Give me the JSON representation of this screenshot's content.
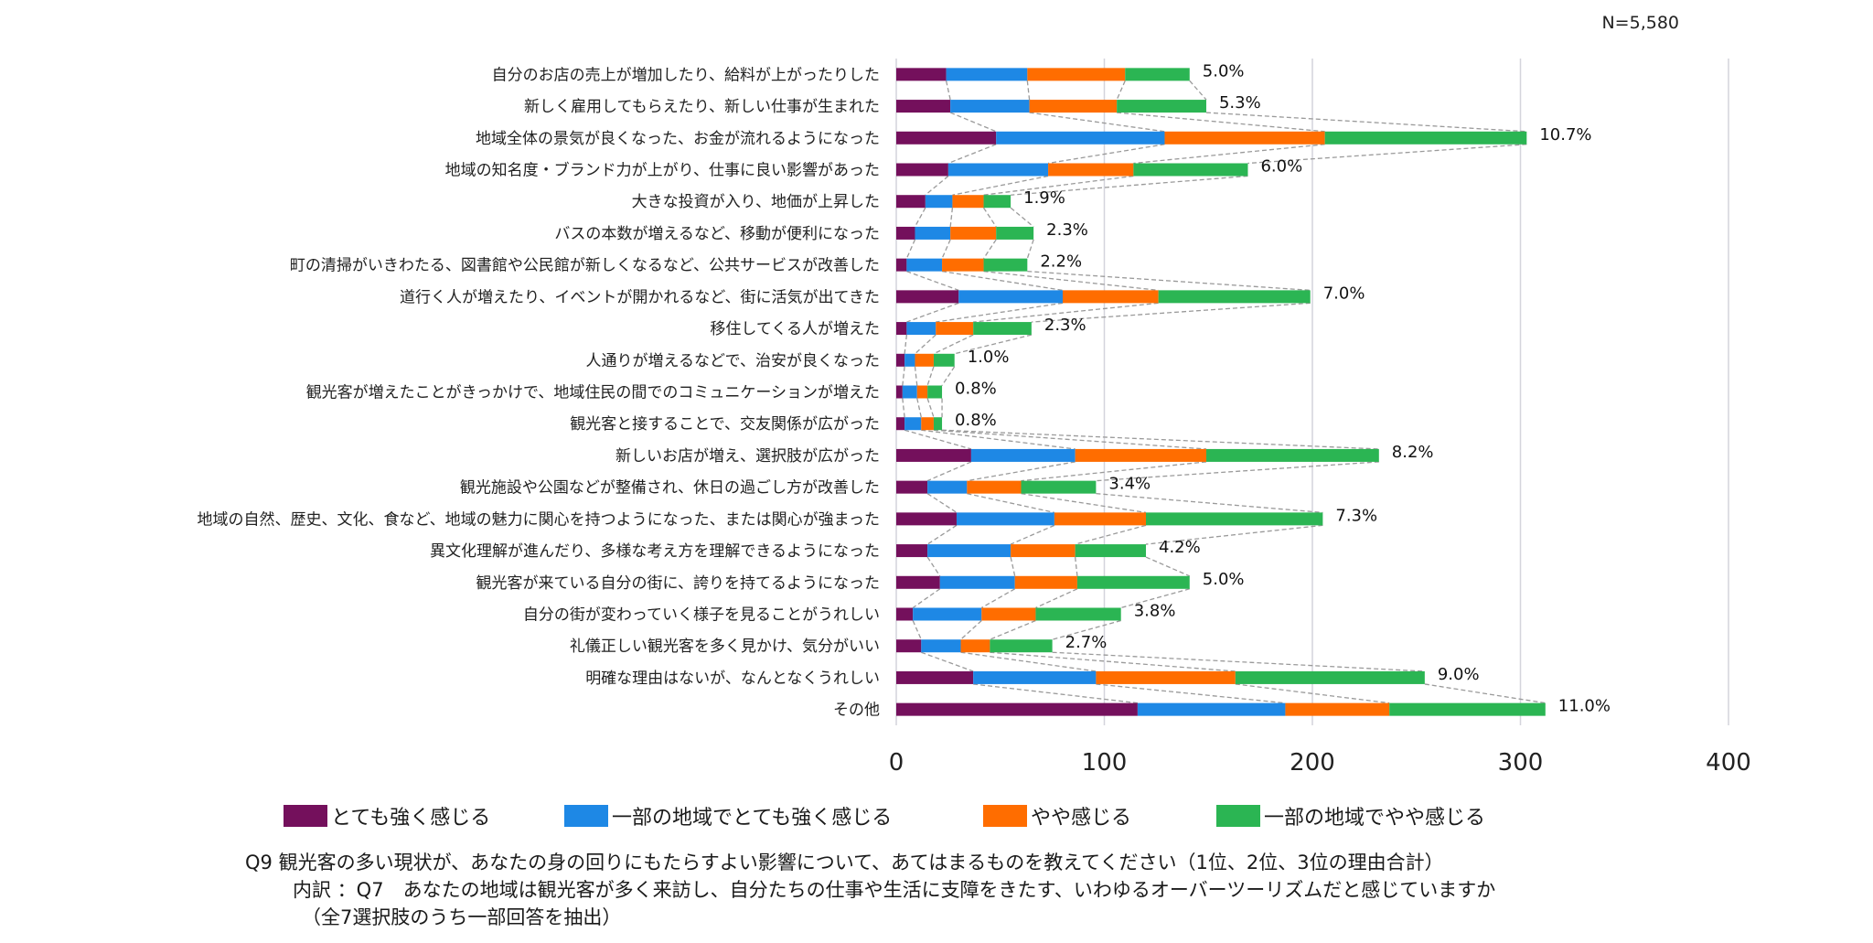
{
  "chart_data": {
    "type": "bar",
    "orientation": "horizontal",
    "stacked": true,
    "title": "",
    "sample_size_label": "N=5,580",
    "xlabel": "",
    "ylabel": "",
    "xlim": [
      0,
      400
    ],
    "x_ticks": [
      0,
      100,
      200,
      300,
      400
    ],
    "x_tick_labels": [
      "0",
      "100",
      "200",
      "300",
      "400"
    ],
    "grid": "vertical",
    "legend_position": "bottom",
    "connector_lines": "dashed",
    "categories": [
      "自分のお店の売上が増加したり、給料が上がったりした",
      "新しく雇用してもらえたり、新しい仕事が生まれた",
      "地域全体の景気が良くなった、お金が流れるようになった",
      "地域の知名度・ブランド力が上がり、仕事に良い影響があった",
      "大きな投資が入り、地価が上昇した",
      "バスの本数が増えるなど、移動が便利になった",
      "町の清掃がいきわたる、図書館や公民館が新しくなるなど、公共サービスが改善した",
      "道行く人が増えたり、イベントが開かれるなど、街に活気が出てきた",
      "移住してくる人が増えた",
      "人通りが増えるなどで、治安が良くなった",
      "観光客が増えたことがきっかけで、地域住民の間でのコミュニケーションが増えた",
      "観光客と接することで、交友関係が広がった",
      "新しいお店が増え、選択肢が広がった",
      "観光施設や公園などが整備され、休日の過ごし方が改善した",
      "地域の自然、歴史、文化、食など、地域の魅力に関心を持つようになった、または関心が強まった",
      "異文化理解が進んだり、多様な考え方を理解できるようになった",
      "観光客が来ている自分の街に、誇りを持てるようになった",
      "自分の街が変わっていく様子を見ることがうれしい",
      "礼儀正しい観光客を多く見かけ、気分がいい",
      "明確な理由はないが、なんとなくうれしい",
      "その他"
    ],
    "series": [
      {
        "name": "とても強く感じる",
        "color": "#74105c",
        "values": [
          24,
          26,
          48,
          25,
          14,
          9,
          5,
          30,
          5,
          4,
          3,
          4,
          36,
          15,
          29,
          15,
          21,
          8,
          12,
          37,
          116
        ]
      },
      {
        "name": "一部の地域でとても強く感じる",
        "color": "#1e88e5",
        "values": [
          39,
          38,
          81,
          48,
          13,
          17,
          17,
          50,
          14,
          5,
          7,
          8,
          50,
          19,
          47,
          40,
          36,
          33,
          19,
          59,
          71
        ]
      },
      {
        "name": "やや感じる",
        "color": "#ff6d00",
        "values": [
          47,
          42,
          77,
          41,
          15,
          22,
          20,
          46,
          18,
          9,
          5,
          6,
          63,
          26,
          44,
          31,
          30,
          26,
          14,
          67,
          50
        ]
      },
      {
        "name": "一部の地域でやや感じる",
        "color": "#2bb553",
        "values": [
          31,
          43,
          97,
          55,
          13,
          18,
          21,
          73,
          28,
          10,
          7,
          4,
          83,
          36,
          85,
          34,
          54,
          41,
          30,
          91,
          75
        ]
      }
    ],
    "totals": [
      141,
      149,
      303,
      169,
      55,
      66,
      63,
      199,
      65,
      28,
      22,
      22,
      232,
      96,
      205,
      120,
      141,
      108,
      75,
      254,
      312
    ],
    "data_labels": [
      "5.0%",
      "5.3%",
      "10.7%",
      "6.0%",
      "1.9%",
      "2.3%",
      "2.2%",
      "7.0%",
      "2.3%",
      "1.0%",
      "0.8%",
      "0.8%",
      "8.2%",
      "3.4%",
      "7.3%",
      "4.2%",
      "5.0%",
      "3.8%",
      "2.7%",
      "9.0%",
      "11.0%"
    ],
    "footnotes": [
      "Q9 観光客の多い現状が、あなたの身の回りにもたらすよい影響について、あてはまるものを教えてください（1位、2位、3位の理由合計）",
      "内訳 ：Q7　あなたの地域は観光客が多く来訪し、自分たちの仕事や生活に支障をきたす、いわゆるオーバーツーリズムだと感じていますか",
      "（全7選択肢のうち一部回答を抽出）"
    ]
  },
  "colors": {
    "gridline": "#d4d4dc",
    "connector": "#9a9a9a",
    "text": "#1a1a1a"
  }
}
